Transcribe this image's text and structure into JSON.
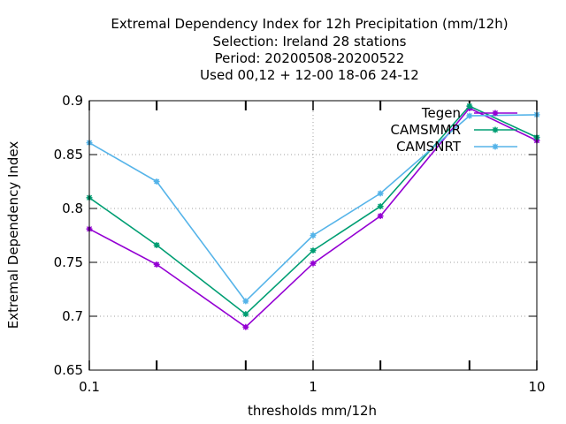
{
  "chart_data": {
    "type": "line",
    "title_lines": [
      "Extremal Dependency Index  for 12h Precipitation (mm/12h)",
      "Selection: Ireland     28 stations",
      "Period: 20200508-20200522",
      "Used  00,12  + 12-00 18-06 24-12"
    ],
    "xlabel": "thresholds mm/12h",
    "ylabel": "Extremal Dependency Index",
    "xscale": "log",
    "xlim": [
      0.1,
      10
    ],
    "ylim": [
      0.65,
      0.9
    ],
    "xticks": [
      0.1,
      1,
      10
    ],
    "xtick_labels": [
      "0.1",
      "1",
      "10"
    ],
    "xminor_ticks": [
      0.2,
      0.5,
      2,
      5
    ],
    "yticks": [
      0.65,
      0.7,
      0.75,
      0.8,
      0.85,
      0.9
    ],
    "ytick_labels": [
      "0.65",
      "0.7",
      "0.75",
      "0.8",
      "0.85",
      "0.9"
    ],
    "grid": true,
    "legend_position": "top-right",
    "x": [
      0.1,
      0.2,
      0.5,
      1,
      2,
      5,
      10
    ],
    "series": [
      {
        "name": "Tegen",
        "color": "#9400d3",
        "marker": "star",
        "values": [
          0.781,
          0.748,
          0.69,
          0.749,
          0.793,
          0.893,
          0.863
        ]
      },
      {
        "name": "CAMSMMR",
        "color": "#009e73",
        "marker": "star",
        "values": [
          0.81,
          0.766,
          0.702,
          0.761,
          0.802,
          0.895,
          0.866
        ]
      },
      {
        "name": "CAMSNRT",
        "color": "#56b4e9",
        "marker": "star",
        "values": [
          0.861,
          0.825,
          0.714,
          0.775,
          0.814,
          0.886,
          0.887
        ]
      }
    ]
  }
}
